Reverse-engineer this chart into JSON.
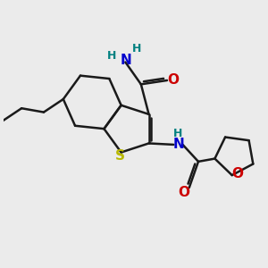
{
  "bg_color": "#ebebeb",
  "bond_color": "#1a1a1a",
  "S_color": "#b8b800",
  "N_color": "#0000cc",
  "O_color": "#cc0000",
  "H_color": "#008080",
  "bond_width": 1.8,
  "figsize": [
    3.0,
    3.0
  ],
  "dpi": 100,
  "xlim": [
    0,
    10
  ],
  "ylim": [
    0,
    10
  ]
}
